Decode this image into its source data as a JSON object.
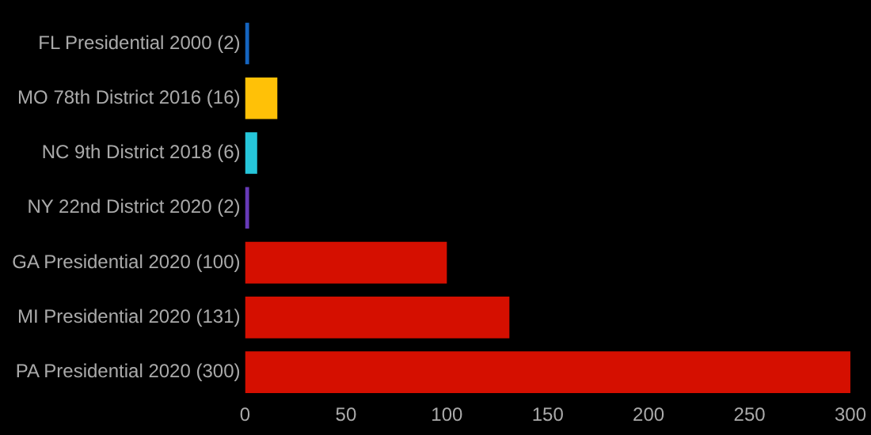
{
  "chart_data": {
    "type": "bar",
    "orientation": "horizontal",
    "categories": [
      "FL Presidential 2000 (2)",
      "MO 78th District 2016 (16)",
      "NC 9th District 2018 (6)",
      "NY 22nd District 2020 (2)",
      "GA Presidential 2020 (100)",
      "MI Presidential 2020 (131)",
      "PA Presidential 2020 (300)"
    ],
    "values": [
      2,
      16,
      6,
      2,
      100,
      131,
      300
    ],
    "colors": [
      "#1565c0",
      "#ffc107",
      "#26c6da",
      "#673ab7",
      "#d50f00",
      "#d50f00",
      "#d50f00"
    ],
    "xlim": [
      0,
      300
    ],
    "xticks": [
      0,
      50,
      100,
      150,
      200,
      250,
      300
    ],
    "grid": false,
    "legend": false
  }
}
